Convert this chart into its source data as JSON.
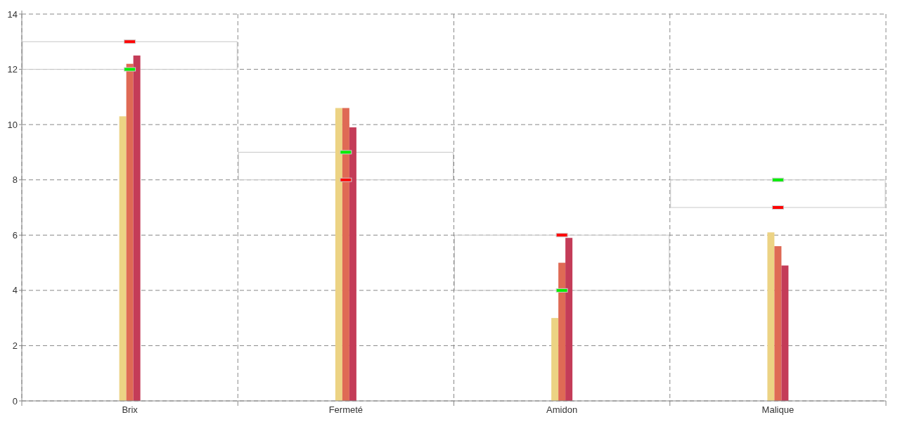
{
  "chart_data": {
    "type": "bar",
    "categories": [
      "Brix",
      "Fermeté",
      "Amidon",
      "Malique"
    ],
    "series": [
      {
        "color": "#ecd384",
        "values": [
          10.3,
          10.6,
          3.0,
          6.1
        ]
      },
      {
        "color": "#df6a55",
        "values": [
          12.2,
          10.6,
          5.0,
          5.6
        ]
      },
      {
        "color": "#c43c58",
        "values": [
          12.5,
          9.9,
          5.9,
          4.9
        ]
      },
      {
        "type": "scatter",
        "color": "#ff0000",
        "values": [
          13,
          8,
          6,
          7
        ]
      },
      {
        "type": "scatter",
        "color": "#00ee00",
        "values": [
          12,
          9,
          4,
          8
        ]
      }
    ],
    "ylim": [
      0,
      14
    ],
    "yticks": [
      0,
      2,
      4,
      6,
      8,
      10,
      12,
      14
    ],
    "grid": true,
    "marker": "square"
  }
}
